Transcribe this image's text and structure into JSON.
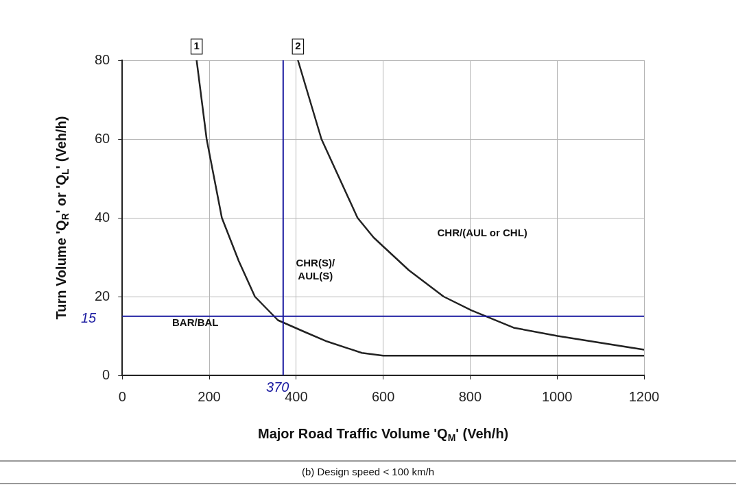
{
  "chart_data": {
    "type": "line",
    "title": "(b) Design speed < 100 km/h",
    "xlabel": "Major Road Traffic Volume 'Q$_{M}$' (Veh/h)",
    "ylabel": "Turn Volume 'Q$_{R}$' or 'Q$_{L}$' (Veh/h)",
    "xlim": [
      0,
      1200
    ],
    "xticks": [
      0,
      200,
      400,
      600,
      800,
      1000,
      1200
    ],
    "ylim": [
      0,
      80
    ],
    "yticks": [
      0,
      20,
      40,
      60,
      80
    ],
    "grid": true,
    "series": [
      {
        "color": "#222222",
        "x": [
          171,
          194,
          229,
          268,
          305,
          358,
          420,
          471,
          551,
          600,
          800,
          1000,
          1200
        ],
        "values": [
          80,
          60,
          40,
          29,
          20,
          14,
          11,
          8.6,
          5.7,
          5,
          5,
          5,
          5
        ]
      },
      {
        "color": "#222222",
        "x": [
          404,
          458,
          541,
          578,
          659,
          739,
          803,
          900,
          1001,
          1200
        ],
        "values": [
          80,
          60,
          40,
          35,
          26.7,
          20,
          16.5,
          12.1,
          10,
          6.5
        ]
      }
    ],
    "ref_lines": [
      {
        "axis": "y",
        "value": 15,
        "label": "15",
        "color": "#1a1aa0"
      },
      {
        "axis": "x",
        "value": 370,
        "label": "370",
        "color": "#1a1aa0"
      }
    ],
    "annotations": [
      {
        "text": "1",
        "x": 171,
        "y": 80
      },
      {
        "text": "2",
        "x": 404,
        "y": 80
      },
      "BAR/BAL",
      "CHR(S)/\nAUL(S)",
      "CHR/(AUL or CHL)"
    ]
  }
}
